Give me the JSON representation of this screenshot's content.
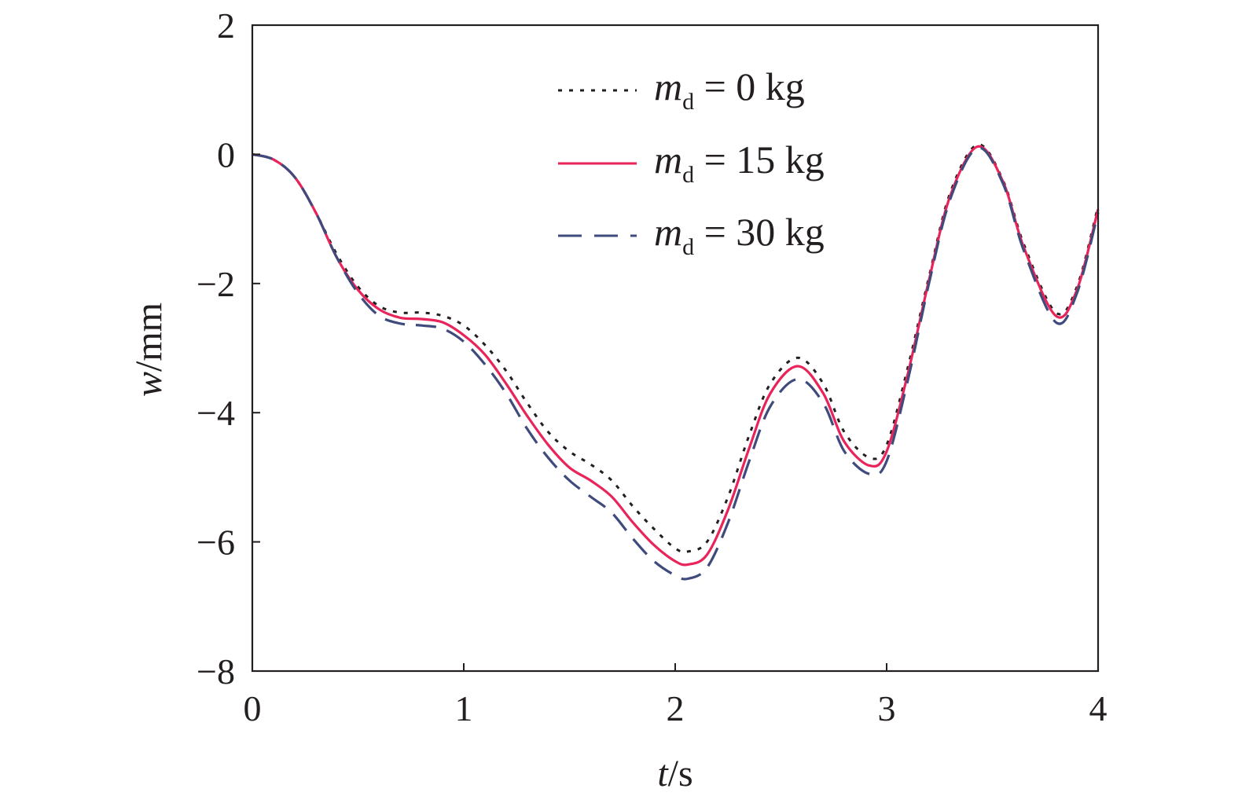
{
  "chart_data": {
    "type": "line",
    "xlabel": {
      "var": "t",
      "unit": "/s"
    },
    "ylabel": {
      "var": "w",
      "unit": "/mm"
    },
    "xlim": [
      0,
      4
    ],
    "ylim": [
      -8,
      2
    ],
    "xticks": [
      0,
      1,
      2,
      3,
      4
    ],
    "yticks": [
      2,
      0,
      -2,
      -4,
      -6,
      -8
    ],
    "xtick_labels": [
      "0",
      "1",
      "2",
      "3",
      "4"
    ],
    "ytick_labels": [
      "2",
      "0",
      "−2",
      "−4",
      "−6",
      "−8"
    ],
    "grid": false,
    "legend_position": "top-center",
    "series": [
      {
        "legend": {
          "var": "m",
          "sub": "d",
          "rest": " = 0 kg"
        },
        "color": "#231f20",
        "style": "dotted",
        "x": [
          0,
          0.1,
          0.2,
          0.3,
          0.4,
          0.5,
          0.6,
          0.7,
          0.8,
          0.9,
          1.0,
          1.1,
          1.2,
          1.3,
          1.4,
          1.5,
          1.6,
          1.7,
          1.8,
          1.9,
          2.0,
          2.06,
          2.15,
          2.25,
          2.35,
          2.45,
          2.58,
          2.7,
          2.8,
          2.92,
          3.0,
          3.1,
          3.2,
          3.3,
          3.43,
          3.55,
          3.65,
          3.8,
          3.9,
          4.0
        ],
        "y": [
          0,
          -0.08,
          -0.35,
          -0.9,
          -1.55,
          -2.05,
          -2.35,
          -2.45,
          -2.45,
          -2.5,
          -2.65,
          -2.95,
          -3.35,
          -3.85,
          -4.3,
          -4.6,
          -4.8,
          -5.05,
          -5.45,
          -5.8,
          -6.1,
          -6.15,
          -6.0,
          -5.3,
          -4.35,
          -3.55,
          -3.15,
          -3.55,
          -4.3,
          -4.7,
          -4.5,
          -3.3,
          -1.9,
          -0.6,
          0.15,
          -0.4,
          -1.4,
          -2.45,
          -2.05,
          -0.8
        ]
      },
      {
        "legend": {
          "var": "m",
          "sub": "d",
          "rest": " = 15 kg"
        },
        "color": "#e8245a",
        "style": "solid",
        "x": [
          0,
          0.1,
          0.2,
          0.3,
          0.4,
          0.5,
          0.6,
          0.7,
          0.8,
          0.9,
          1.0,
          1.1,
          1.2,
          1.3,
          1.4,
          1.5,
          1.6,
          1.7,
          1.8,
          1.9,
          2.0,
          2.06,
          2.15,
          2.25,
          2.35,
          2.45,
          2.58,
          2.7,
          2.8,
          2.92,
          3.0,
          3.1,
          3.2,
          3.3,
          3.43,
          3.55,
          3.65,
          3.8,
          3.9,
          4.0
        ],
        "y": [
          0,
          -0.08,
          -0.35,
          -0.9,
          -1.6,
          -2.1,
          -2.4,
          -2.53,
          -2.55,
          -2.6,
          -2.8,
          -3.1,
          -3.55,
          -4.05,
          -4.5,
          -4.85,
          -5.05,
          -5.3,
          -5.7,
          -6.05,
          -6.3,
          -6.35,
          -6.2,
          -5.5,
          -4.55,
          -3.7,
          -3.28,
          -3.7,
          -4.45,
          -4.82,
          -4.6,
          -3.4,
          -1.95,
          -0.65,
          0.12,
          -0.42,
          -1.45,
          -2.5,
          -2.1,
          -0.85
        ]
      },
      {
        "legend": {
          "var": "m",
          "sub": "d",
          "rest": " = 30 kg"
        },
        "color": "#3f4a7d",
        "style": "dashed",
        "x": [
          0,
          0.1,
          0.2,
          0.3,
          0.4,
          0.5,
          0.6,
          0.7,
          0.8,
          0.9,
          1.0,
          1.1,
          1.2,
          1.3,
          1.4,
          1.5,
          1.6,
          1.7,
          1.8,
          1.9,
          2.0,
          2.06,
          2.15,
          2.25,
          2.35,
          2.45,
          2.58,
          2.7,
          2.8,
          2.92,
          3.0,
          3.1,
          3.2,
          3.3,
          3.43,
          3.55,
          3.65,
          3.8,
          3.9,
          4.0
        ],
        "y": [
          0,
          -0.08,
          -0.35,
          -0.9,
          -1.6,
          -2.15,
          -2.5,
          -2.62,
          -2.65,
          -2.7,
          -2.9,
          -3.25,
          -3.7,
          -4.25,
          -4.7,
          -5.05,
          -5.3,
          -5.55,
          -5.95,
          -6.3,
          -6.52,
          -6.57,
          -6.4,
          -5.7,
          -4.75,
          -3.9,
          -3.48,
          -3.85,
          -4.6,
          -4.95,
          -4.75,
          -3.5,
          -2.0,
          -0.7,
          0.1,
          -0.45,
          -1.5,
          -2.6,
          -2.15,
          -0.9
        ]
      }
    ]
  }
}
